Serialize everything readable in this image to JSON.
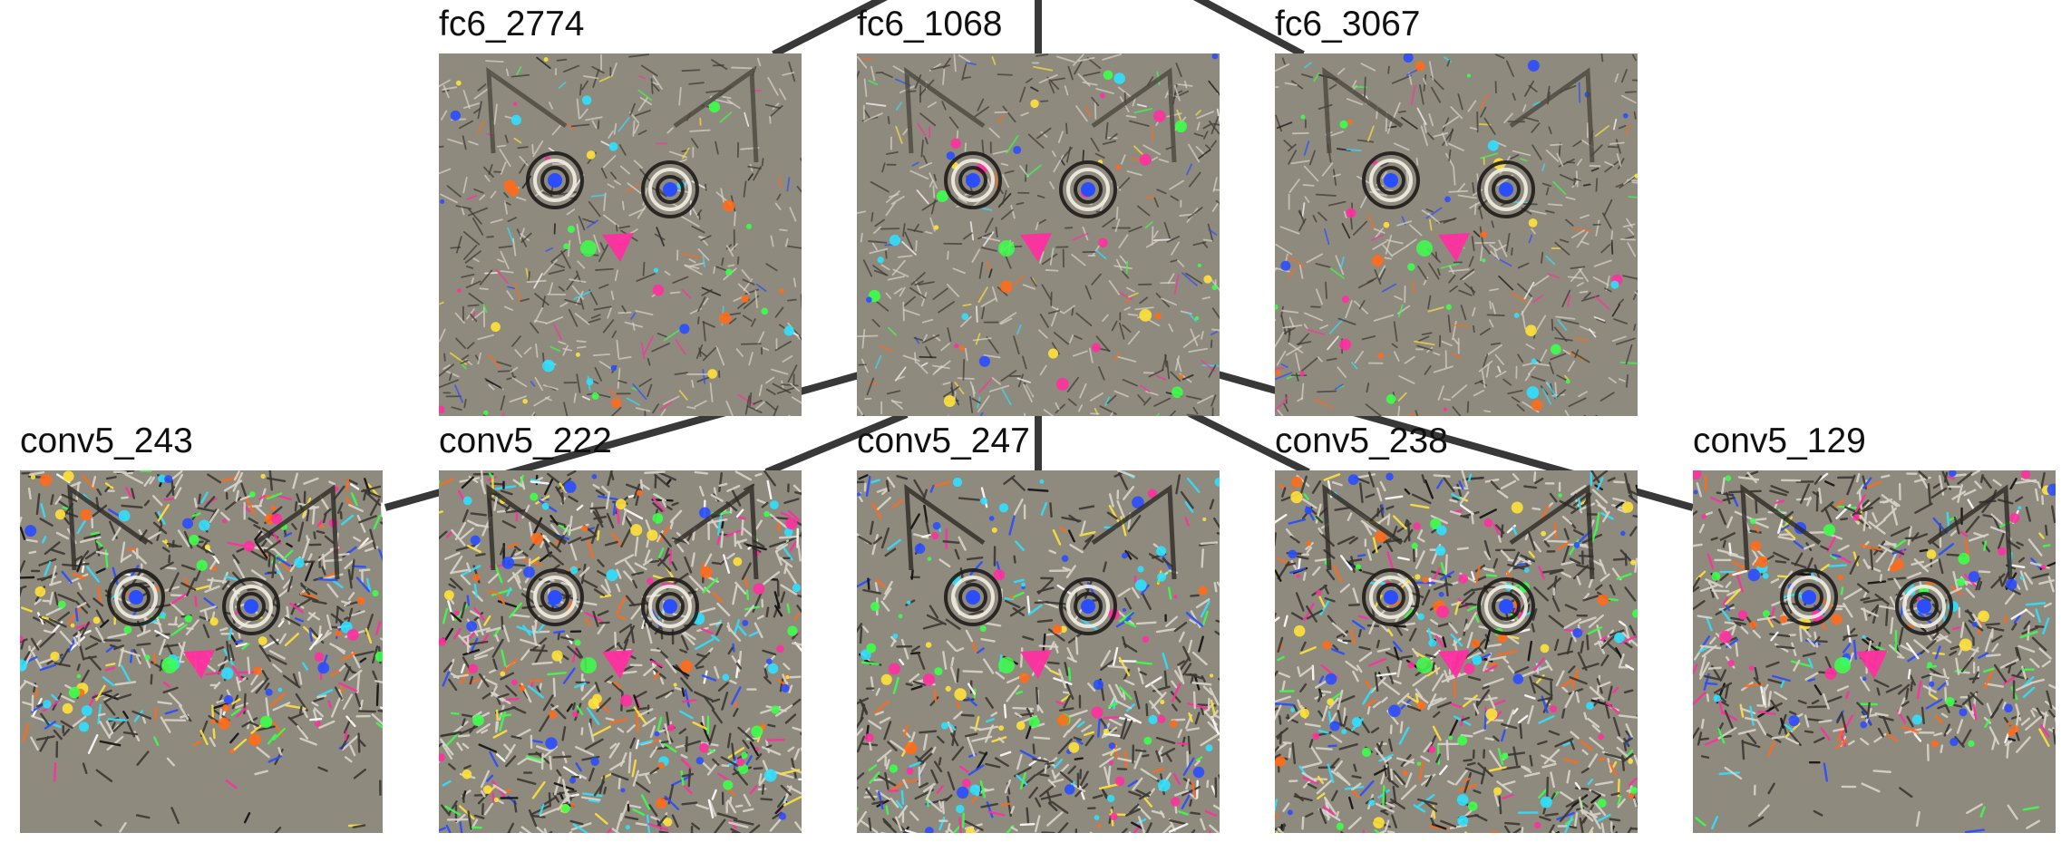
{
  "nodes": [
    {
      "id": "fc6_2774",
      "label": "fc6_2774",
      "row": "top",
      "style": "soft",
      "face": "cat-face"
    },
    {
      "id": "fc6_1068",
      "label": "fc6_1068",
      "row": "top",
      "style": "soft",
      "face": "cat-face"
    },
    {
      "id": "fc6_3067",
      "label": "fc6_3067",
      "row": "top",
      "style": "soft",
      "face": "cat-face"
    },
    {
      "id": "conv5_243",
      "label": "conv5_243",
      "row": "bottom",
      "style": "busy",
      "face": "cat-head-only"
    },
    {
      "id": "conv5_222",
      "label": "conv5_222",
      "row": "bottom",
      "style": "busy",
      "face": "cat-face"
    },
    {
      "id": "conv5_247",
      "label": "conv5_247",
      "row": "bottom",
      "style": "busy-bottom",
      "face": "cat-face"
    },
    {
      "id": "conv5_238",
      "label": "conv5_238",
      "row": "bottom",
      "style": "busy",
      "face": "cat-face"
    },
    {
      "id": "conv5_129",
      "label": "conv5_129",
      "row": "bottom",
      "style": "busy",
      "face": "cat-head-only"
    }
  ],
  "colors": {
    "edge": "#383838",
    "image_background": "#8f8a7e",
    "speckle": [
      "#ff2fa0",
      "#3cff4a",
      "#2a4dff",
      "#ffe23a",
      "#ff6a1a",
      "#30e0ff",
      "#ffffff",
      "#111111"
    ]
  }
}
